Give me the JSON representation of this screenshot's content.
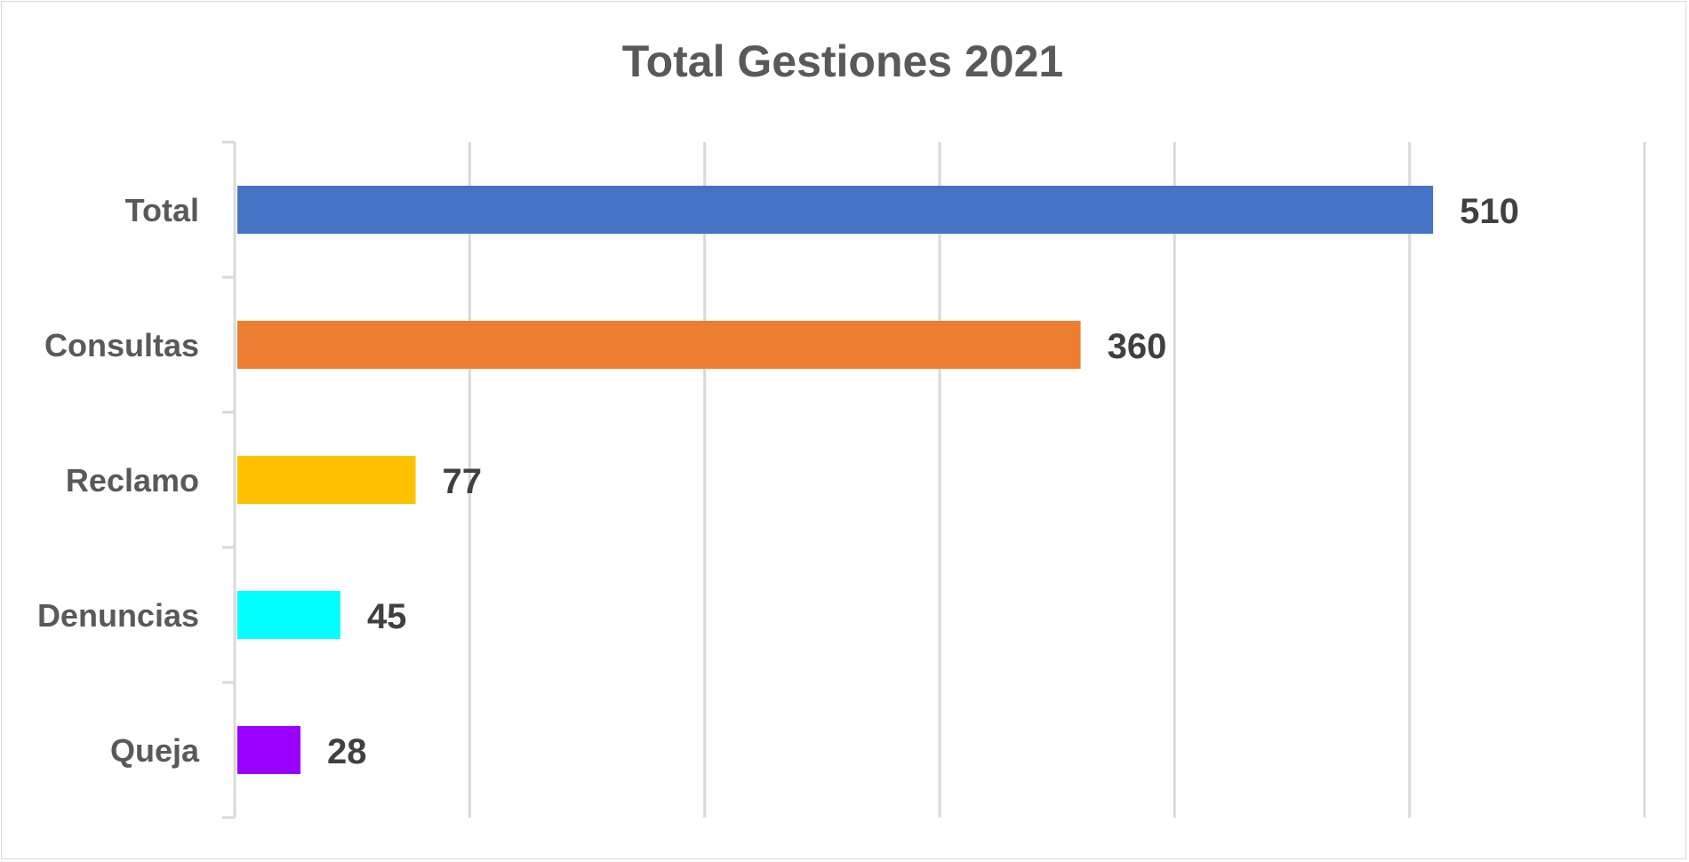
{
  "chart_data": {
    "type": "bar",
    "orientation": "horizontal",
    "title": "Total Gestiones 2021",
    "categories": [
      "Total",
      "Consultas",
      "Reclamo",
      "Denuncias",
      "Queja"
    ],
    "values": [
      510,
      360,
      77,
      45,
      28
    ],
    "colors": [
      "#4472c4",
      "#ed7d31",
      "#ffc000",
      "#00ffff",
      "#9900ff"
    ],
    "xlim": [
      0,
      600
    ],
    "x_grid_step": 100,
    "grid": true,
    "legend": "none",
    "xlabel": "",
    "ylabel": "",
    "data_labels": true
  }
}
